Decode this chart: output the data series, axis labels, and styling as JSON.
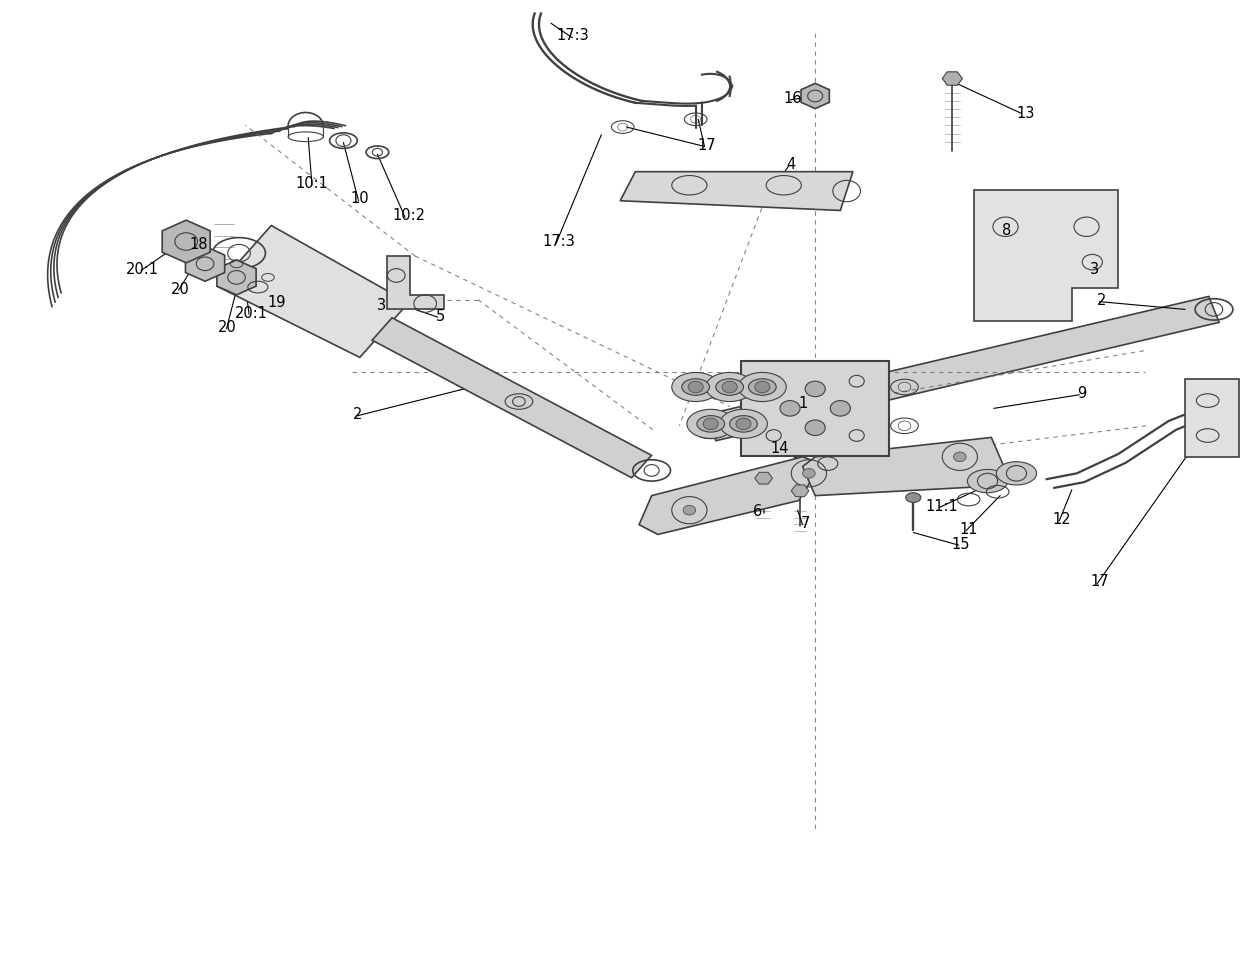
{
  "title": "",
  "bg_color": "#ffffff",
  "line_color": "#404040",
  "dashed_color": "#707070",
  "label_color": "#000000",
  "label_fontsize": 11,
  "leader_line_color": "#000000"
}
